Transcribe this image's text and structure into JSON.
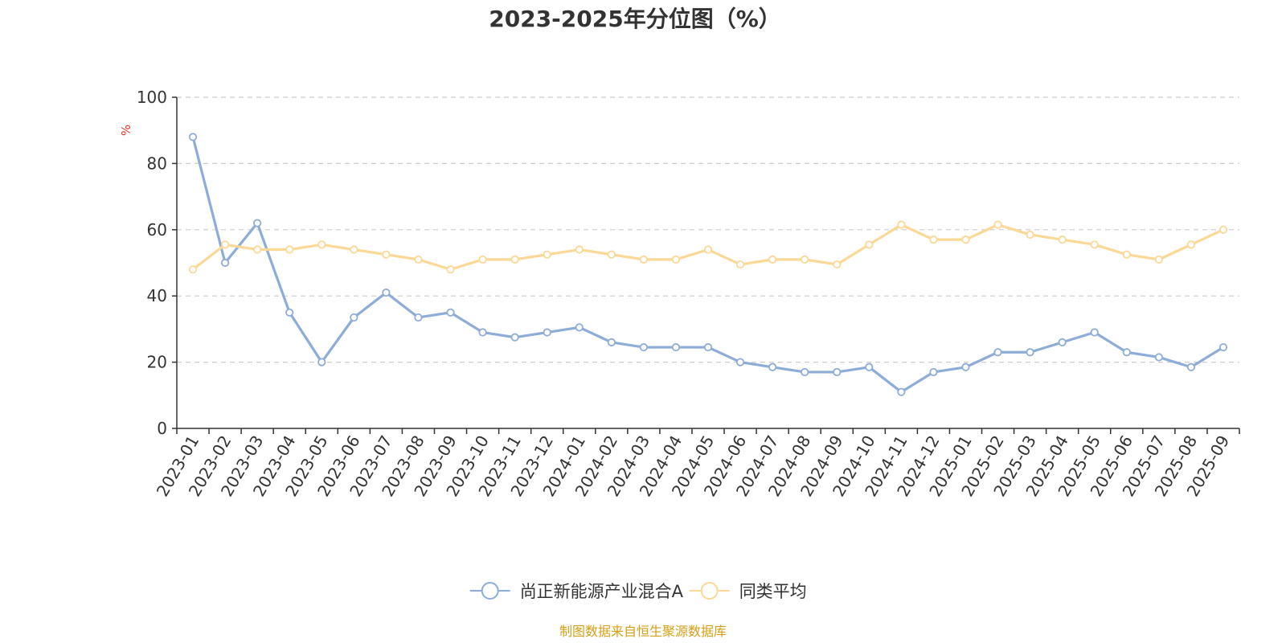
{
  "chart_data": {
    "type": "line",
    "title": "2023-2025年分位图（%）",
    "ylabel": "%",
    "xlabel": "",
    "ylim": [
      0,
      100
    ],
    "yticks": [
      0,
      20,
      40,
      60,
      80,
      100
    ],
    "grid": true,
    "legend_position": "bottom-center",
    "categories": [
      "2023-01",
      "2023-02",
      "2023-03",
      "2023-04",
      "2023-05",
      "2023-06",
      "2023-07",
      "2023-08",
      "2023-09",
      "2023-10",
      "2023-11",
      "2023-12",
      "2024-01",
      "2024-02",
      "2024-03",
      "2024-04",
      "2024-05",
      "2024-06",
      "2024-07",
      "2024-08",
      "2024-09",
      "2024-10",
      "2024-11",
      "2024-12",
      "2025-01",
      "2025-02",
      "2025-03",
      "2025-04",
      "2025-05",
      "2025-06",
      "2025-07",
      "2025-08",
      "2025-09"
    ],
    "series": [
      {
        "name": "尚正新能源产业混合A",
        "color": "#8eacd8",
        "values": [
          88,
          50,
          62,
          35,
          20,
          33.5,
          41,
          33.5,
          35,
          29,
          27.5,
          29,
          30.5,
          26,
          24.5,
          24.5,
          24.5,
          20,
          18.5,
          17,
          17,
          18.5,
          11,
          17,
          18.5,
          23,
          23,
          26,
          29,
          23,
          21.5,
          18.5,
          24.5
        ]
      },
      {
        "name": "同类平均",
        "color": "#fad896",
        "values": [
          48,
          55.5,
          54,
          54,
          55.5,
          54,
          52.5,
          51,
          48,
          51,
          51,
          52.5,
          54,
          52.5,
          51,
          51,
          54,
          49.5,
          51,
          51,
          49.5,
          55.5,
          61.5,
          57,
          57,
          61.5,
          58.5,
          57,
          55.5,
          52.5,
          51,
          55.5,
          60
        ]
      }
    ],
    "source": "制图数据来自恒生聚源数据库"
  },
  "colors": {
    "axis": "#333333",
    "grid": "#cccccc",
    "unit": "#e8342c",
    "source": "#d4a017",
    "title": "#333333"
  }
}
